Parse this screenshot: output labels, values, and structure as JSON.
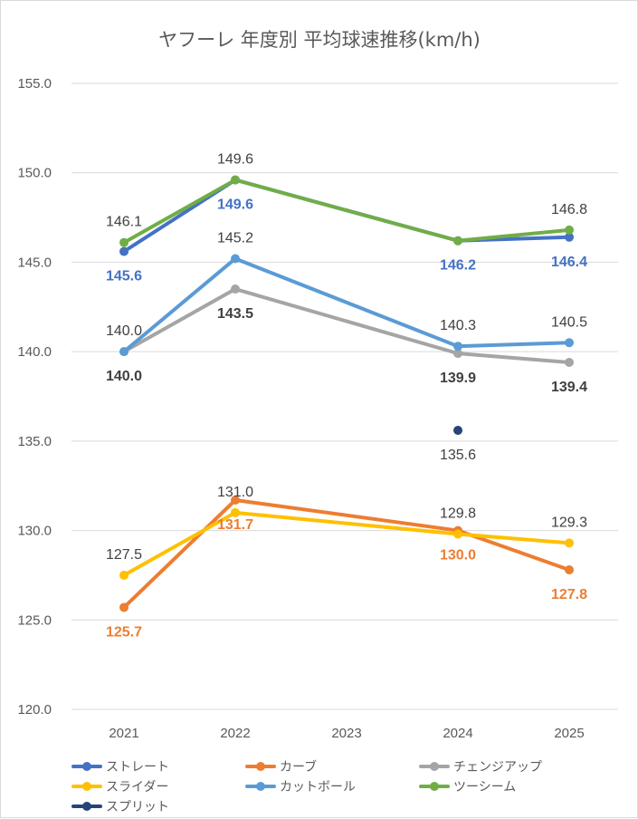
{
  "chart_data": {
    "type": "line",
    "title": "ヤフーレ 年度別 平均球速推移(km/h)",
    "categories": [
      "2021",
      "2022",
      "2023",
      "2024",
      "2025"
    ],
    "ylim": [
      120,
      155
    ],
    "yticks": [
      "120.0",
      "125.0",
      "130.0",
      "135.0",
      "140.0",
      "145.0",
      "150.0",
      "155.0"
    ],
    "grid": true,
    "legend_position": "bottom",
    "series": [
      {
        "name": "ストレート",
        "color": "#4472c4",
        "values": [
          145.6,
          149.6,
          null,
          146.2,
          146.4
        ],
        "labels": [
          "145.6",
          "149.6",
          null,
          "146.2",
          "146.4"
        ],
        "label_pos": "below",
        "label_color": "#4472c4",
        "label_bold": true
      },
      {
        "name": "カーブ",
        "color": "#ed7d31",
        "values": [
          125.7,
          131.7,
          null,
          130.0,
          127.8
        ],
        "labels": [
          "125.7",
          "131.7",
          null,
          "130.0",
          "127.8"
        ],
        "label_pos": "below",
        "label_color": "#ed7d31",
        "label_bold": true
      },
      {
        "name": "チェンジアップ",
        "color": "#a5a5a5",
        "values": [
          140.0,
          143.5,
          null,
          139.9,
          139.4
        ],
        "labels": [
          "140.0",
          "143.5",
          null,
          "139.9",
          "139.4"
        ],
        "label_pos": "below",
        "label_color": "#404040",
        "label_bold": true
      },
      {
        "name": "スライダー",
        "color": "#ffc000",
        "values": [
          127.5,
          131.0,
          null,
          129.8,
          129.3
        ],
        "labels": [
          "127.5",
          "131.0",
          null,
          "129.8",
          "129.3"
        ],
        "label_pos": "above",
        "label_color": "#404040",
        "label_bold": false
      },
      {
        "name": "カットボール",
        "color": "#5b9bd5",
        "values": [
          140.0,
          145.2,
          null,
          140.3,
          140.5
        ],
        "labels": [
          "140.0",
          "145.2",
          null,
          "140.3",
          "140.5"
        ],
        "label_pos": "above",
        "label_color": "#404040",
        "label_bold": false
      },
      {
        "name": "ツーシーム",
        "color": "#70ad47",
        "values": [
          146.1,
          149.6,
          null,
          146.2,
          146.8
        ],
        "labels": [
          "146.1",
          "149.6",
          null,
          null,
          "146.8"
        ],
        "label_pos": "above",
        "label_color": "#404040",
        "label_bold": false
      },
      {
        "name": "スプリット",
        "color": "#264478",
        "values": [
          null,
          null,
          null,
          135.6,
          null
        ],
        "labels": [
          null,
          null,
          null,
          "135.6",
          null
        ],
        "label_pos": "below",
        "label_color": "#404040",
        "label_bold": false
      }
    ]
  }
}
